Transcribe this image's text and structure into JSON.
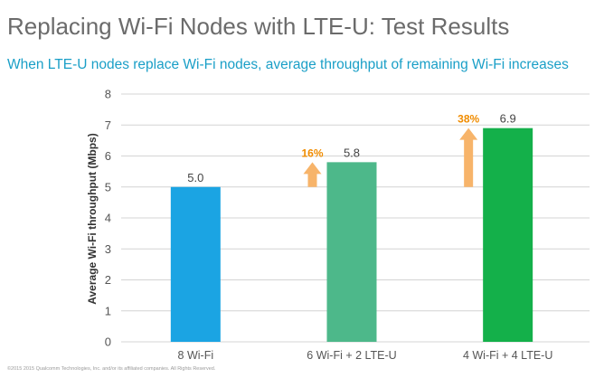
{
  "title": "Replacing Wi-Fi Nodes with LTE-U: Test Results",
  "subtitle": "When LTE-U nodes replace Wi-Fi nodes, average throughput of remaining Wi-Fi increases",
  "footer": "©2015 2015 Qualcomm Technologies, Inc. and/or its affiliated companies. All Rights Reserved.",
  "colors": {
    "grid": "#d4d4d4",
    "arrow": "#f7b46a",
    "increase_text": "#f08c00"
  },
  "chart_data": {
    "type": "bar",
    "title": "",
    "xlabel": "",
    "ylabel": "Average Wi-Fi throughput (Mbps)",
    "ylim": [
      0,
      8
    ],
    "yticks": [
      0,
      1,
      2,
      3,
      4,
      5,
      6,
      7,
      8
    ],
    "grid": true,
    "categories": [
      "8 Wi-Fi",
      "6 Wi-Fi + 2 LTE-U",
      "4 Wi-Fi + 4 LTE-U"
    ],
    "values": [
      5.0,
      5.8,
      6.9
    ],
    "value_labels": [
      "5.0",
      "5.8",
      "6.9"
    ],
    "bar_colors": [
      "#1ba4e3",
      "#4db88a",
      "#14b04a"
    ],
    "annotations": [
      {
        "category": "6 Wi-Fi + 2 LTE-U",
        "text": "16%",
        "from": 5.0,
        "to": 5.8
      },
      {
        "category": "4 Wi-Fi + 4 LTE-U",
        "text": "38%",
        "from": 5.0,
        "to": 6.9
      }
    ]
  }
}
